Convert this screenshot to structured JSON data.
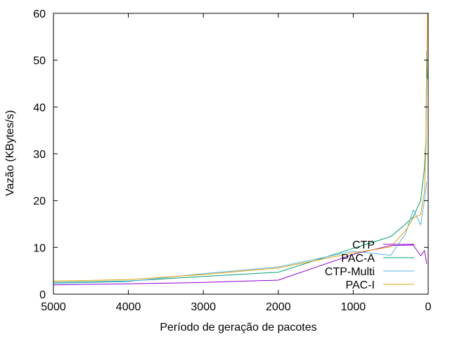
{
  "chart_data": {
    "type": "line",
    "title": "",
    "xlabel": "Período de geração de pacotes",
    "ylabel": "Vazão (KBytes/s)",
    "xlim": [
      5000,
      0
    ],
    "ylim": [
      0,
      60
    ],
    "x_reversed": true,
    "grid": false,
    "legend_position": "bottom-right",
    "x_ticks": [
      5000,
      4000,
      3000,
      2000,
      1000,
      0
    ],
    "y_ticks": [
      0,
      10,
      20,
      30,
      40,
      50,
      60
    ],
    "series": [
      {
        "name": "CTP",
        "color": "#9400d3",
        "points": [
          [
            5000,
            2.0
          ],
          [
            4000,
            2.2
          ],
          [
            3000,
            2.5
          ],
          [
            2000,
            3.0
          ],
          [
            1000,
            8.5
          ],
          [
            500,
            10.4
          ],
          [
            200,
            10.5
          ],
          [
            100,
            8.2
          ],
          [
            50,
            9.3
          ],
          [
            20,
            6.5
          ]
        ]
      },
      {
        "name": "PAC-A",
        "color": "#009e73",
        "points": [
          [
            5000,
            2.5
          ],
          [
            4000,
            2.8
          ],
          [
            3000,
            3.8
          ],
          [
            2000,
            4.7
          ],
          [
            1000,
            9.8
          ],
          [
            500,
            12.3
          ],
          [
            300,
            15.0
          ],
          [
            200,
            16.5
          ],
          [
            100,
            20.0
          ],
          [
            50,
            27.0
          ],
          [
            30,
            33.0
          ],
          [
            20,
            52.0
          ],
          [
            10,
            46.0
          ]
        ]
      },
      {
        "name": "CTP-Multi",
        "color": "#56b4e9",
        "points": [
          [
            5000,
            2.3
          ],
          [
            4000,
            2.7
          ],
          [
            3000,
            4.4
          ],
          [
            2000,
            5.8
          ],
          [
            1000,
            9.2
          ],
          [
            500,
            8.3
          ],
          [
            300,
            13.0
          ],
          [
            200,
            18.0
          ],
          [
            100,
            14.8
          ],
          [
            50,
            20.0
          ],
          [
            20,
            24.0
          ]
        ]
      },
      {
        "name": "PAC-I",
        "color": "#e69f00",
        "points": [
          [
            5000,
            2.8
          ],
          [
            4000,
            3.1
          ],
          [
            3000,
            4.2
          ],
          [
            2000,
            5.6
          ],
          [
            1000,
            8.8
          ],
          [
            500,
            10.1
          ],
          [
            300,
            13.6
          ],
          [
            200,
            16.3
          ],
          [
            100,
            17.0
          ],
          [
            50,
            22.0
          ],
          [
            30,
            32.0
          ],
          [
            10,
            60.0
          ]
        ]
      }
    ]
  }
}
